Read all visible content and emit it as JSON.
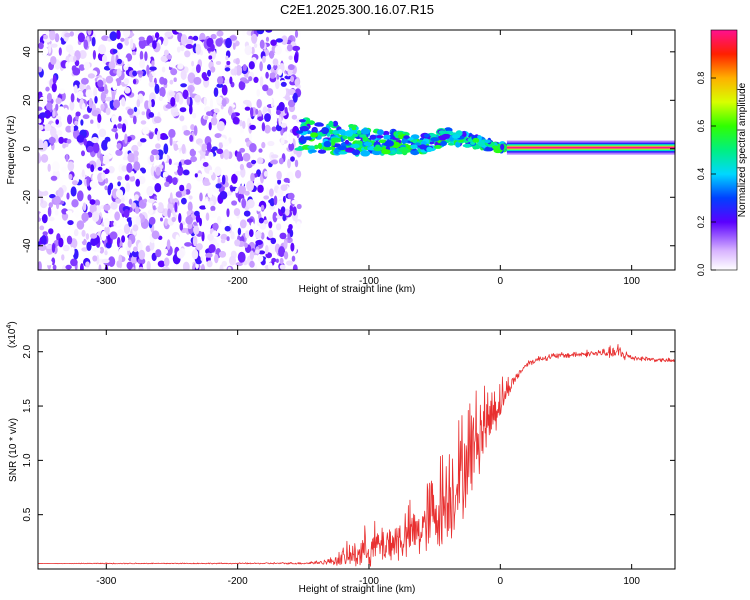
{
  "page_title": "C2E1.2025.300.16.07.R15",
  "colors": {
    "axis": "#000000",
    "snr_line": "#e83030",
    "noise": "#7a22ee",
    "band": "#e8e000"
  },
  "chart_data": [
    {
      "type": "heatmap",
      "title": "C2E1.2025.300.16.07.R15",
      "xlabel": "Height of straight line (km)",
      "ylabel": "Frequency (Hz)",
      "xlim": [
        -352,
        133
      ],
      "ylim": [
        -50,
        49
      ],
      "xticks": [
        -300,
        -200,
        -100,
        0,
        100
      ],
      "yticks": [
        -40,
        -20,
        0,
        20,
        40
      ],
      "x_tick_labels": [
        "-300",
        "-200",
        "-100",
        "0",
        "100"
      ],
      "y_tick_labels": [
        "-40",
        "-20",
        "0",
        "20",
        "40"
      ],
      "colorbar": {
        "label": "Normalized spectral amplitude",
        "range": [
          0,
          1
        ],
        "ticks": [
          0.0,
          0.2,
          0.4,
          0.6,
          0.8
        ],
        "tick_labels": [
          "0.0",
          "0.2",
          "0.4",
          "0.6",
          "0.8"
        ]
      },
      "regions": [
        {
          "name": "noise",
          "x_range": [
            -352,
            -153
          ],
          "freq_range": [
            -50,
            49
          ],
          "amplitude": [
            0.0,
            0.25
          ]
        },
        {
          "name": "emerging-signal",
          "x_range": [
            -153,
            5
          ],
          "center_freq": [
            [
              -153,
              6
            ],
            [
              -100,
              3
            ],
            [
              -60,
              2
            ],
            [
              -40,
              5
            ],
            [
              -20,
              3
            ],
            [
              0,
              0.5
            ]
          ],
          "amplitude": [
            0.2,
            0.6
          ]
        },
        {
          "name": "clean-signal",
          "x_range": [
            5,
            133
          ],
          "center_freq": 0.5,
          "amplitude": 1.0
        }
      ]
    },
    {
      "type": "line",
      "xlabel": "Height of straight line (km)",
      "ylabel": "SNR (10 * v/v)",
      "y_multiplier_label": "(x10",
      "y_multiplier_exp": "4",
      "y_multiplier_close": ")",
      "xlim": [
        -352,
        133
      ],
      "ylim": [
        0,
        2.2
      ],
      "xticks": [
        -300,
        -200,
        -100,
        0,
        100
      ],
      "yticks": [
        0.5,
        1.0,
        1.5,
        2.0
      ],
      "x_tick_labels": [
        "-300",
        "-200",
        "-100",
        "0",
        "100"
      ],
      "y_tick_labels": [
        "0.5",
        "1.0",
        "1.5",
        "2.0"
      ],
      "series": [
        {
          "name": "SNR",
          "x": [
            -352,
            -300,
            -250,
            -200,
            -150,
            -130,
            -110,
            -100,
            -80,
            -60,
            -50,
            -40,
            -30,
            -20,
            -10,
            0,
            10,
            20,
            30,
            40,
            60,
            80,
            90,
            100,
            120,
            133
          ],
          "y": [
            0.05,
            0.05,
            0.05,
            0.05,
            0.05,
            0.06,
            0.1,
            0.15,
            0.2,
            0.3,
            0.42,
            0.55,
            0.75,
            1.05,
            1.3,
            1.5,
            1.72,
            1.88,
            1.93,
            1.95,
            1.97,
            1.98,
            1.97,
            1.94,
            1.92,
            1.91
          ],
          "noise_amp": [
            0.0,
            0.005,
            0.005,
            0.005,
            0.01,
            0.03,
            0.15,
            0.2,
            0.22,
            0.3,
            0.45,
            0.5,
            0.5,
            0.45,
            0.35,
            0.2,
            0.05,
            0.03,
            0.03,
            0.03,
            0.03,
            0.04,
            0.08,
            0.03,
            0.02,
            0.02
          ]
        }
      ]
    }
  ]
}
